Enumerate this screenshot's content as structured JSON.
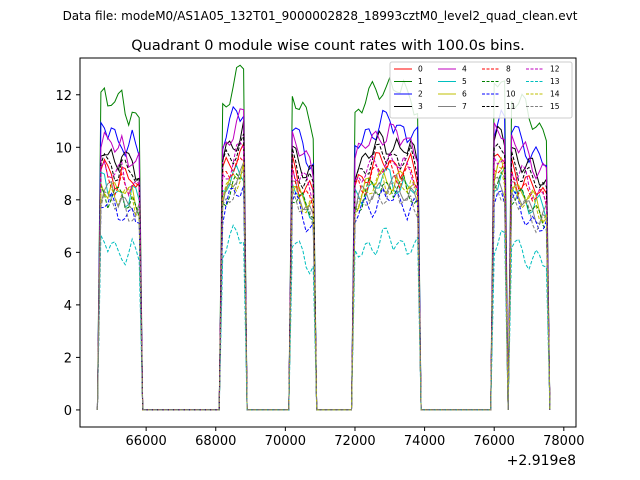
{
  "chart_data": {
    "type": "line",
    "suptitle": "Data file: modeM0/AS1A05_132T01_9000002828_18993cztM0_level2_quad_clean.evt",
    "title": "Quadrant 0 module wise count rates with 100.0s bins.",
    "xlabel": "",
    "ylabel": "",
    "x_offset_label": "+2.919e8",
    "xlim": [
      64100,
      78350
    ],
    "ylim": [
      -0.65,
      13.4
    ],
    "x_ticks": [
      66000,
      68000,
      70000,
      72000,
      74000,
      76000,
      78000
    ],
    "x_tick_labels": [
      "66000",
      "68000",
      "70000",
      "72000",
      "74000",
      "76000",
      "78000"
    ],
    "y_ticks": [
      0,
      2,
      4,
      6,
      8,
      10,
      12
    ],
    "y_tick_labels": [
      "0",
      "2",
      "4",
      "6",
      "8",
      "10",
      "12"
    ],
    "legend_location": "top-right",
    "legend_columns": 4,
    "segments": [
      [
        64650,
        65850
      ],
      [
        68150,
        68850
      ],
      [
        70150,
        70850
      ],
      [
        71950,
        73850
      ],
      [
        75950,
        76350
      ],
      [
        76450,
        77550
      ]
    ],
    "segment_patterns": {
      "A": [
        1.0,
        0.97,
        0.98,
        0.95,
        0.96,
        0.94,
        0.93,
        0.95,
        0.92,
        0.91,
        0.93,
        0.9,
        0.89
      ],
      "B": [
        0.9,
        0.93,
        0.96,
        0.98,
        1.0,
        1.02,
        1.03,
        1.05
      ],
      "C": [
        1.0,
        0.98,
        0.96,
        0.93,
        0.91,
        0.89,
        0.88,
        0.86
      ],
      "D": [
        0.88,
        0.9,
        0.92,
        0.93,
        0.95,
        0.96,
        0.97,
        0.98,
        0.99,
        1.0,
        0.99,
        1.0,
        0.98,
        0.99,
        0.97,
        0.98,
        0.96,
        0.97,
        0.95,
        0.93
      ],
      "E": [
        0.95,
        0.99,
        1.01,
        1.02,
        1.0
      ],
      "F": [
        1.0,
        0.97,
        0.96,
        0.94,
        0.93,
        0.92,
        0.9,
        0.89,
        0.88,
        0.87,
        0.86,
        0.85
      ]
    },
    "series": [
      {
        "name": "0",
        "color": "#ff0000",
        "dash": "solid",
        "level": 9.5
      },
      {
        "name": "1",
        "color": "#008000",
        "dash": "solid",
        "level": 12.4
      },
      {
        "name": "2",
        "color": "#0000ff",
        "dash": "solid",
        "level": 11.0
      },
      {
        "name": "3",
        "color": "#000000",
        "dash": "solid",
        "level": 10.2
      },
      {
        "name": "4",
        "color": "#bf00bf",
        "dash": "solid",
        "level": 10.6
      },
      {
        "name": "5",
        "color": "#00bfbf",
        "dash": "solid",
        "level": 8.8
      },
      {
        "name": "6",
        "color": "#bfbf00",
        "dash": "solid",
        "level": 8.9
      },
      {
        "name": "7",
        "color": "#808080",
        "dash": "solid",
        "level": 8.6
      },
      {
        "name": "8",
        "color": "#ff0000",
        "dash": "dashed",
        "level": 9.2
      },
      {
        "name": "9",
        "color": "#008000",
        "dash": "dashed",
        "level": 8.6
      },
      {
        "name": "10",
        "color": "#0000ff",
        "dash": "dashed",
        "level": 8.1
      },
      {
        "name": "11",
        "color": "#000000",
        "dash": "dashed",
        "level": 9.8
      },
      {
        "name": "12",
        "color": "#bf00bf",
        "dash": "dashed",
        "level": 9.5
      },
      {
        "name": "13",
        "color": "#00bfbf",
        "dash": "dashed",
        "level": 6.5
      },
      {
        "name": "14",
        "color": "#bfbf00",
        "dash": "dashed",
        "level": 8.7
      },
      {
        "name": "15",
        "color": "#808080",
        "dash": "dashed",
        "level": 8.3
      }
    ]
  }
}
